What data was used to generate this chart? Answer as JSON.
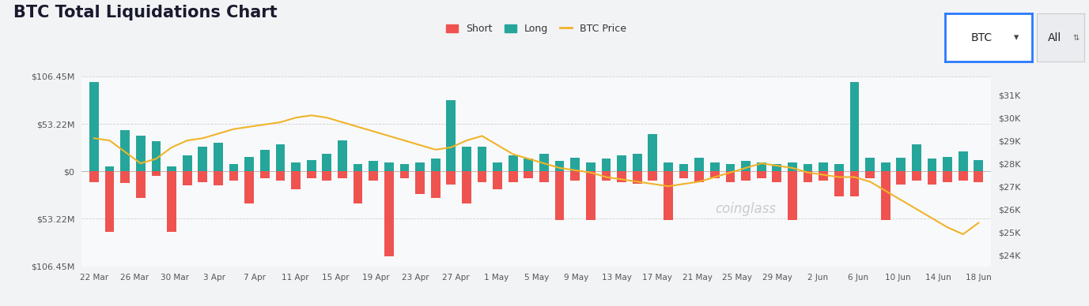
{
  "title": "BTC Total Liquidations Chart",
  "title_fontsize": 15,
  "background_color": "#f2f3f5",
  "chart_bg_color": "#f8f9fb",
  "bar_color_long": "#26a69a",
  "bar_color_short": "#ef5350",
  "btc_price_color": "#f0b429",
  "ylim_left": [
    -106.45,
    106.45
  ],
  "ylim_right": [
    23500,
    31800
  ],
  "yticks_left": [
    -106.45,
    -53.22,
    0,
    53.22,
    106.45
  ],
  "ytick_labels_left": [
    "$106.45M",
    "$53.22M",
    "$0",
    "$53.22M",
    "$106.45M"
  ],
  "yticks_right": [
    24000,
    25000,
    26000,
    27000,
    28000,
    29000,
    30000,
    31000
  ],
  "ytick_labels_right": [
    "$24K",
    "$25K",
    "$26K",
    "$27K",
    "$28K",
    "$29K",
    "$30K",
    "$31K"
  ],
  "xtick_labels": [
    "22 Mar",
    "26 Mar",
    "30 Mar",
    "3 Apr",
    "7 Apr",
    "11 Apr",
    "15 Apr",
    "19 Apr",
    "23 Apr",
    "27 Apr",
    "1 May",
    "5 May",
    "9 May",
    "13 May",
    "17 May",
    "21 May",
    "25 May",
    "29 May",
    "2 Jun",
    "6 Jun",
    "10 Jun",
    "14 Jun",
    "18 Jun"
  ],
  "legend_entries": [
    "Short",
    "Long",
    "BTC Price"
  ],
  "watermark": "coinglass",
  "long_values": [
    100,
    6,
    46,
    40,
    34,
    6,
    18,
    28,
    32,
    8,
    16,
    24,
    30,
    10,
    13,
    20,
    35,
    8,
    12,
    10,
    8,
    10,
    14,
    80,
    28,
    28,
    10,
    18,
    14,
    20,
    12,
    15,
    10,
    14,
    18,
    20,
    42,
    10,
    8,
    15,
    10,
    8,
    12,
    10,
    8,
    10,
    8,
    10,
    8,
    100,
    15,
    10,
    15,
    30,
    14,
    16,
    22,
    13
  ],
  "short_values": [
    -12,
    -68,
    -13,
    -30,
    -5,
    -68,
    -16,
    -12,
    -16,
    -10,
    -36,
    -8,
    -10,
    -20,
    -8,
    -10,
    -8,
    -36,
    -10,
    -95,
    -8,
    -25,
    -30,
    -15,
    -36,
    -12,
    -20,
    -12,
    -8,
    -12,
    -55,
    -10,
    -55,
    -10,
    -12,
    -14,
    -10,
    -55,
    -8,
    -12,
    -8,
    -12,
    -10,
    -8,
    -12,
    -55,
    -12,
    -10,
    -28,
    -28,
    -8,
    -55,
    -15,
    -10,
    -15,
    -12,
    -10,
    -12
  ],
  "btc_price": [
    29100,
    29000,
    28500,
    28000,
    28200,
    28700,
    29000,
    29100,
    29300,
    29500,
    29600,
    29700,
    29800,
    30000,
    30100,
    30000,
    29800,
    29600,
    29400,
    29200,
    29000,
    28800,
    28600,
    28700,
    29000,
    29200,
    28800,
    28400,
    28200,
    28000,
    27800,
    27700,
    27600,
    27400,
    27300,
    27200,
    27100,
    27000,
    27100,
    27200,
    27400,
    27600,
    27800,
    28000,
    27900,
    27800,
    27600,
    27500,
    27400,
    27400,
    27200,
    26800,
    26400,
    26000,
    25600,
    25200,
    24900,
    25400
  ]
}
